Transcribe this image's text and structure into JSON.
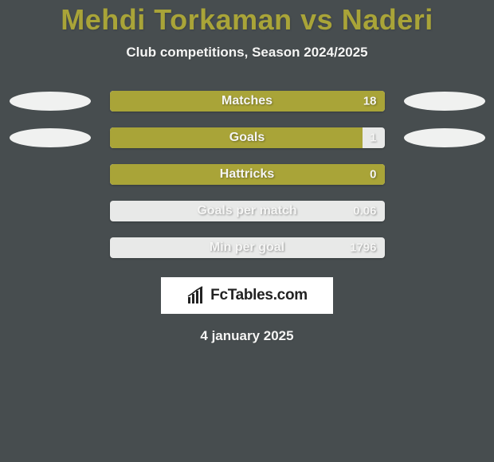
{
  "colors": {
    "background": "#474d4f",
    "title": "#a9a438",
    "subtitle": "#f5f5f4",
    "bar_track": "#e8e9e8",
    "bar_fill": "#a9a438",
    "bar_label": "#f5f5f4",
    "bar_value": "#f5f5f4",
    "ellipse": "#f0f1f0",
    "logo_bg": "#ffffff",
    "logo_text": "#222222",
    "date": "#f5f5f4"
  },
  "title": "Mehdi Torkaman vs Naderi",
  "subtitle": "Club competitions, Season 2024/2025",
  "date": "4 january 2025",
  "logo": {
    "text": "FcTables.com"
  },
  "rows": [
    {
      "label": "Matches",
      "value": "18",
      "fill_pct": 100,
      "show_left_ellipse": true,
      "show_right_ellipse": true
    },
    {
      "label": "Goals",
      "value": "1",
      "fill_pct": 92,
      "show_left_ellipse": true,
      "show_right_ellipse": true
    },
    {
      "label": "Hattricks",
      "value": "0",
      "fill_pct": 100,
      "show_left_ellipse": false,
      "show_right_ellipse": false
    },
    {
      "label": "Goals per match",
      "value": "0.06",
      "fill_pct": 0,
      "show_left_ellipse": false,
      "show_right_ellipse": false
    },
    {
      "label": "Min per goal",
      "value": "1796",
      "fill_pct": 0,
      "show_left_ellipse": false,
      "show_right_ellipse": false
    }
  ]
}
